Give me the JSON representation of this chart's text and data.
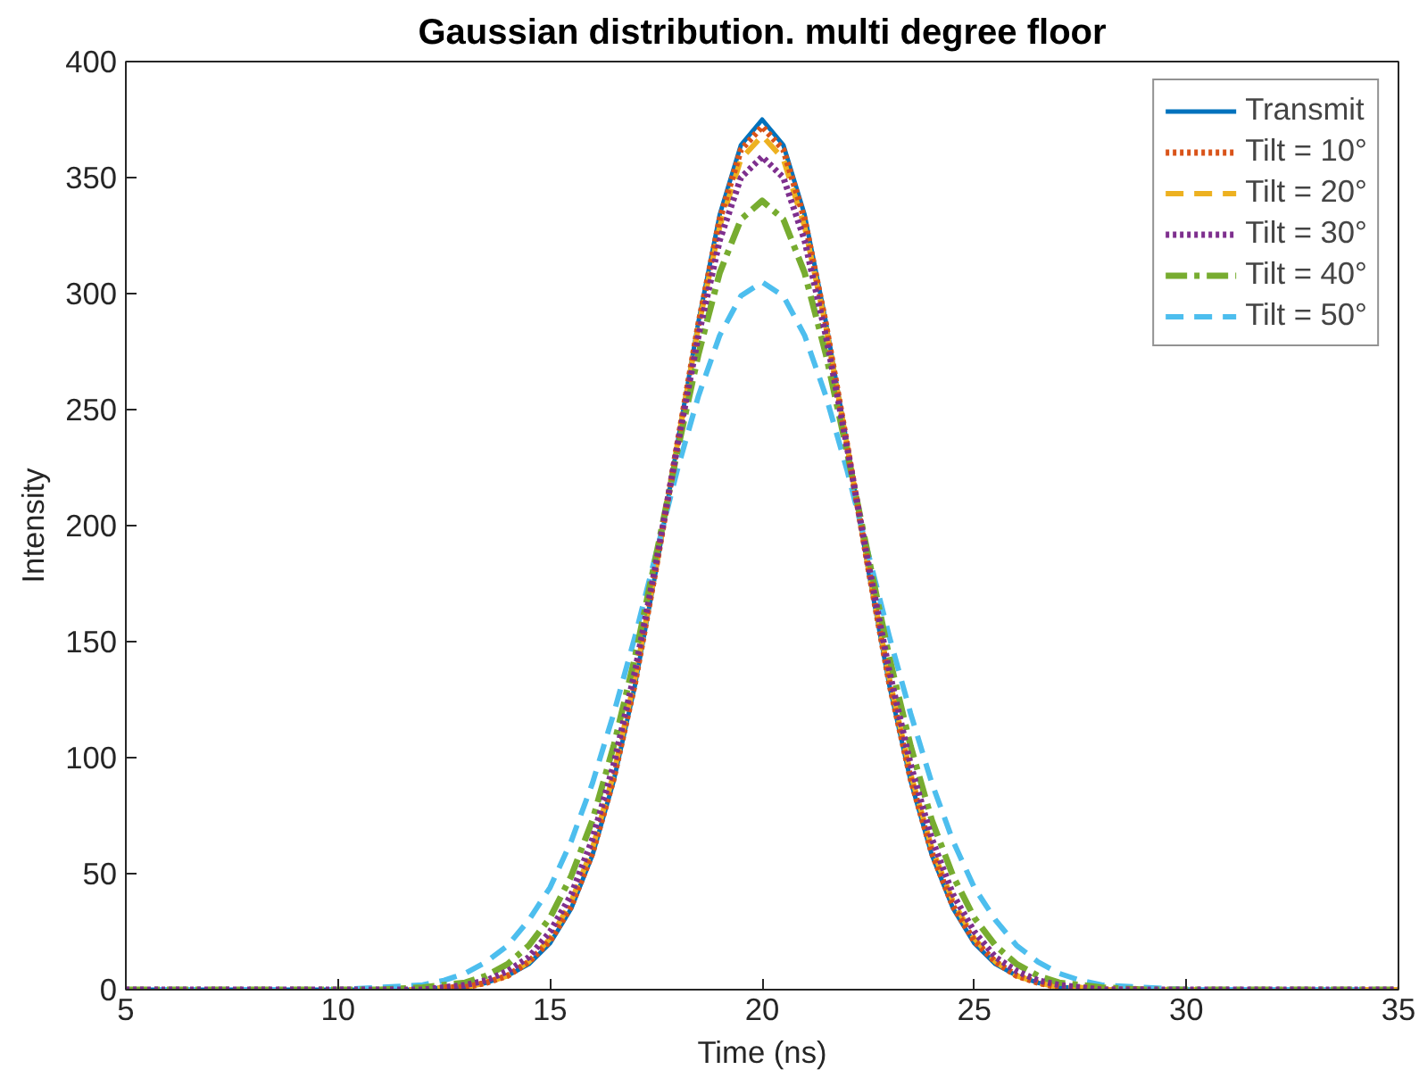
{
  "chart_data": {
    "type": "line",
    "title": "Gaussian distribution. multi degree floor",
    "xlabel": "Time (ns)",
    "ylabel": "Intensity",
    "x": [
      5,
      10,
      11,
      12,
      12.5,
      13,
      13.5,
      14,
      14.5,
      15,
      15.5,
      16,
      16.5,
      17,
      17.5,
      18,
      18.5,
      19,
      19.5,
      20,
      20.5,
      21,
      21.5,
      22,
      22.5,
      23,
      23.5,
      24,
      24.5,
      25,
      25.5,
      26,
      26.5,
      27,
      27.5,
      28,
      29,
      30,
      35
    ],
    "xlim": [
      5,
      35
    ],
    "xticks": [
      5,
      10,
      15,
      20,
      25,
      30,
      35
    ],
    "ylim": [
      0,
      400
    ],
    "yticks": [
      0,
      50,
      100,
      150,
      200,
      250,
      300,
      350,
      400
    ],
    "grid": false,
    "legend": "top right",
    "marker": "none",
    "series": [
      {
        "name": "Transmit",
        "color": "#0072bd",
        "line_style": "solid",
        "values": [
          0,
          0,
          0,
          0,
          1,
          1,
          3,
          6,
          11,
          20,
          35,
          58,
          90,
          131,
          181,
          235,
          288,
          334,
          364,
          375,
          364,
          334,
          288,
          235,
          181,
          131,
          90,
          58,
          35,
          20,
          11,
          6,
          3,
          1,
          1,
          0,
          0,
          0,
          0
        ]
      },
      {
        "name": "Tilt = 10°",
        "color": "#d95319",
        "line_style": "dotted",
        "values": [
          null,
          null,
          null,
          null,
          1,
          1,
          3,
          6,
          12,
          21,
          36,
          59,
          91,
          132,
          182,
          235,
          287,
          332,
          362,
          372,
          362,
          332,
          287,
          235,
          182,
          132,
          91,
          59,
          36,
          21,
          12,
          6,
          3,
          1,
          1,
          0,
          0,
          null,
          null
        ]
      },
      {
        "name": "Tilt = 20°",
        "color": "#edb120",
        "line_style": "dashed",
        "values": [
          null,
          null,
          0,
          0,
          1,
          1,
          3,
          6,
          12,
          22,
          38,
          61,
          93,
          134,
          182,
          235,
          286,
          329,
          358,
          368,
          358,
          329,
          286,
          235,
          182,
          134,
          93,
          61,
          38,
          22,
          12,
          6,
          3,
          1,
          1,
          0,
          0,
          0,
          0
        ]
      },
      {
        "name": "Tilt = 30°",
        "color": "#7e2f8e",
        "line_style": "dotted",
        "values": [
          0,
          0,
          0,
          0,
          1,
          2,
          4,
          8,
          14,
          25,
          41,
          65,
          97,
          137,
          184,
          234,
          282,
          323,
          350,
          359,
          350,
          323,
          282,
          234,
          184,
          137,
          97,
          65,
          41,
          25,
          14,
          8,
          4,
          2,
          1,
          0,
          0,
          0,
          0
        ]
      },
      {
        "name": "Tilt = 40°",
        "color": "#77ac30",
        "line_style": "dashdot",
        "values": [
          0,
          0,
          0,
          1,
          2,
          3,
          6,
          11,
          19,
          31,
          49,
          73,
          105,
          143,
          187,
          232,
          274,
          309,
          332,
          340,
          332,
          309,
          274,
          232,
          187,
          143,
          105,
          73,
          49,
          31,
          19,
          11,
          6,
          3,
          2,
          1,
          0,
          0,
          0
        ]
      },
      {
        "name": "Tilt = 50°",
        "color": "#4dbeee",
        "line_style": "dashed",
        "values": [
          0,
          0,
          1,
          2,
          4,
          7,
          12,
          19,
          30,
          44,
          64,
          89,
          119,
          152,
          188,
          224,
          256,
          282,
          299,
          305,
          299,
          282,
          256,
          224,
          188,
          152,
          119,
          89,
          64,
          44,
          30,
          19,
          12,
          7,
          4,
          2,
          1,
          0,
          0
        ]
      }
    ]
  }
}
